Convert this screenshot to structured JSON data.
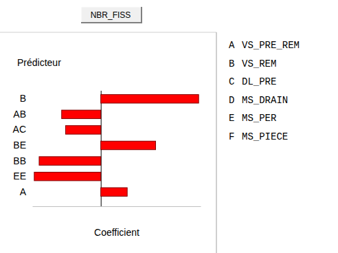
{
  "chart_data": {
    "type": "bar",
    "orientation": "horizontal",
    "title": "NBR_FISS",
    "y_label": "Prédicteur",
    "x_label": "Coefficient",
    "categories": [
      "B",
      "AB",
      "AC",
      "BE",
      "BB",
      "EE",
      "A"
    ],
    "values": [
      1.0,
      -0.4,
      -0.36,
      0.56,
      -0.63,
      -0.68,
      0.27
    ],
    "color": "#ff0000",
    "xlim": [
      -0.7,
      1.02
    ],
    "xticks": [
      0
    ],
    "tick_labels": "y",
    "grid": false,
    "annotations": [
      {
        "label": "A",
        "text": "VS_PRE_REM"
      },
      {
        "label": "B",
        "text": "VS_REM"
      },
      {
        "label": "C",
        "text": "DL_PRE"
      },
      {
        "label": "D",
        "text": "MS_DRAIN"
      },
      {
        "label": "E",
        "text": "MS_PER"
      },
      {
        "label": "F",
        "text": "MS_PIECE"
      }
    ]
  }
}
